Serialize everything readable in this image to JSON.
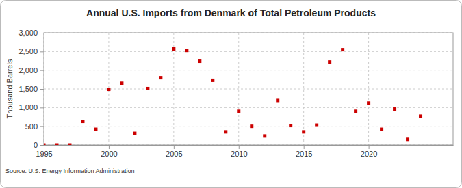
{
  "chart_data": {
    "type": "scatter",
    "title": "Annual U.S. Imports from Denmark of Total Petroleum Products",
    "ylabel": "Thousand Barrels",
    "annotations": [
      "Source: U.S. Energy Information Administration"
    ],
    "x": [
      1995,
      1996,
      1997,
      1998,
      1999,
      2000,
      2001,
      2002,
      2003,
      2004,
      2005,
      2006,
      2007,
      2008,
      2009,
      2010,
      2011,
      2012,
      2013,
      2014,
      2015,
      2016,
      2017,
      2018,
      2019,
      2020,
      2021,
      2022,
      2023,
      2024
    ],
    "values": [
      0,
      0,
      0,
      630,
      420,
      1490,
      1650,
      310,
      1510,
      1800,
      2570,
      2530,
      2240,
      1730,
      350,
      900,
      500,
      240,
      1190,
      520,
      350,
      530,
      2220,
      2550,
      900,
      1120,
      420,
      960,
      150,
      770
    ],
    "color": "#cc0000",
    "marker": "square",
    "xlim": [
      1995,
      2026.5
    ],
    "xticks": [
      1995,
      2000,
      2005,
      2010,
      2015,
      2020
    ],
    "ylim": [
      0,
      3000
    ],
    "yticks": [
      0,
      500,
      {
        "value": 1000,
        "label": "1,000"
      },
      {
        "value": 1500,
        "label": "1,500"
      },
      {
        "value": 2000,
        "label": "2,000"
      },
      {
        "value": 2500,
        "label": "2,500"
      },
      {
        "value": 3000,
        "label": "3,000"
      }
    ],
    "grid": true
  }
}
